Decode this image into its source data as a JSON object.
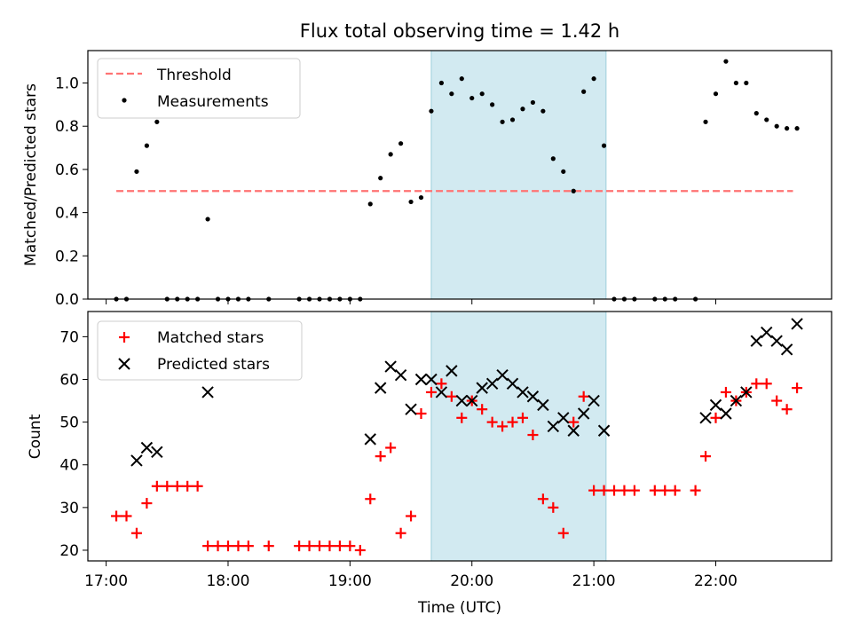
{
  "chart_data": [
    {
      "type": "scatter",
      "title": "Flux total observing time = 1.42 h",
      "xlabel": "",
      "ylabel": "Matched/Predicted stars",
      "ylim": [
        0,
        1.15
      ],
      "yticks": [
        0.0,
        0.2,
        0.4,
        0.6,
        0.8,
        1.0
      ],
      "ytick_labels": [
        "0.0",
        "0.2",
        "0.4",
        "0.6",
        "0.8",
        "1.0"
      ],
      "xlim": [
        "16:51",
        "22:57"
      ],
      "xticks": [
        "17:00",
        "18:00",
        "19:00",
        "20:00",
        "21:00",
        "22:00"
      ],
      "highlight_span": {
        "start": "19:40",
        "end": "21:06",
        "color": "#add8e6"
      },
      "legend_position": "upper-left",
      "series": [
        {
          "name": "Threshold",
          "kind": "dashed-line",
          "color": "#ff7373",
          "x": [
            "17:05",
            "22:38"
          ],
          "y": [
            0.5,
            0.5
          ]
        },
        {
          "name": "Measurements",
          "kind": "dot",
          "color": "#000000",
          "x": [
            "17:05",
            "17:10",
            "17:15",
            "17:20",
            "17:25",
            "17:30",
            "17:35",
            "17:40",
            "17:45",
            "17:50",
            "17:55",
            "18:00",
            "18:05",
            "18:10",
            "18:20",
            "18:35",
            "18:40",
            "18:45",
            "18:50",
            "18:55",
            "19:00",
            "19:05",
            "19:10",
            "19:15",
            "19:20",
            "19:25",
            "19:30",
            "19:35",
            "19:40",
            "19:45",
            "19:50",
            "19:55",
            "20:00",
            "20:05",
            "20:10",
            "20:15",
            "20:20",
            "20:25",
            "20:30",
            "20:35",
            "20:40",
            "20:45",
            "20:50",
            "20:55",
            "21:00",
            "21:05",
            "21:10",
            "21:15",
            "21:20",
            "21:30",
            "21:35",
            "21:40",
            "21:50",
            "21:55",
            "22:00",
            "22:05",
            "22:10",
            "22:15",
            "22:20",
            "22:25",
            "22:30",
            "22:35",
            "22:40"
          ],
          "y": [
            0.0,
            0.0,
            0.59,
            0.71,
            0.82,
            0.0,
            0.0,
            0.0,
            0.0,
            0.37,
            0.0,
            0.0,
            0.0,
            0.0,
            0.0,
            0.0,
            0.0,
            0.0,
            0.0,
            0.0,
            0.0,
            0.0,
            0.44,
            0.56,
            0.67,
            0.72,
            0.45,
            0.47,
            0.87,
            1.0,
            0.95,
            1.02,
            0.93,
            0.95,
            0.9,
            0.82,
            0.83,
            0.88,
            0.91,
            0.87,
            0.65,
            0.59,
            0.5,
            0.96,
            1.02,
            0.71,
            0.0,
            0.0,
            0.0,
            0.0,
            0.0,
            0.0,
            0.0,
            0.82,
            0.95,
            1.1,
            1.0,
            1.0,
            0.86,
            0.83,
            0.8,
            0.79,
            0.79
          ]
        }
      ]
    },
    {
      "type": "scatter",
      "title": "",
      "xlabel": "Time (UTC)",
      "ylabel": "Count",
      "ylim": [
        17.5,
        75.9
      ],
      "yticks": [
        20,
        30,
        40,
        50,
        60,
        70
      ],
      "ytick_labels": [
        "20",
        "30",
        "40",
        "50",
        "60",
        "70"
      ],
      "xlim": [
        "16:51",
        "22:57"
      ],
      "xticks": [
        "17:00",
        "18:00",
        "19:00",
        "20:00",
        "21:00",
        "22:00"
      ],
      "xtick_labels": [
        "17:00",
        "18:00",
        "19:00",
        "20:00",
        "21:00",
        "22:00"
      ],
      "highlight_span": {
        "start": "19:40",
        "end": "21:06",
        "color": "#add8e6"
      },
      "legend_position": "upper-left",
      "series": [
        {
          "name": "Matched stars",
          "kind": "plus",
          "color": "#ff0000",
          "x": [
            "17:05",
            "17:10",
            "17:15",
            "17:20",
            "17:25",
            "17:30",
            "17:35",
            "17:40",
            "17:45",
            "17:50",
            "17:55",
            "18:00",
            "18:05",
            "18:10",
            "18:20",
            "18:35",
            "18:40",
            "18:45",
            "18:50",
            "18:55",
            "19:00",
            "19:05",
            "19:10",
            "19:15",
            "19:20",
            "19:25",
            "19:30",
            "19:35",
            "19:40",
            "19:45",
            "19:50",
            "19:55",
            "20:00",
            "20:05",
            "20:10",
            "20:15",
            "20:20",
            "20:25",
            "20:30",
            "20:35",
            "20:40",
            "20:45",
            "20:50",
            "20:55",
            "21:00",
            "21:05",
            "21:10",
            "21:15",
            "21:20",
            "21:30",
            "21:35",
            "21:40",
            "21:50",
            "21:55",
            "22:00",
            "22:05",
            "22:10",
            "22:15",
            "22:20",
            "22:25",
            "22:30",
            "22:35",
            "22:40"
          ],
          "y": [
            28,
            28,
            24,
            31,
            35,
            35,
            35,
            35,
            35,
            21,
            21,
            21,
            21,
            21,
            21,
            21,
            21,
            21,
            21,
            21,
            21,
            20,
            32,
            42,
            44,
            24,
            28,
            52,
            57,
            59,
            56,
            51,
            55,
            53,
            50,
            49,
            50,
            51,
            47,
            32,
            30,
            24,
            50,
            56,
            34,
            34,
            34,
            34,
            34,
            34,
            34,
            34,
            34,
            42,
            51,
            57,
            55,
            57,
            59,
            59,
            55,
            53,
            58
          ]
        },
        {
          "name": "Predicted stars",
          "kind": "cross",
          "color": "#000000",
          "x": [
            "17:15",
            "17:20",
            "17:25",
            "17:50",
            "19:10",
            "19:15",
            "19:20",
            "19:25",
            "19:30",
            "19:35",
            "19:40",
            "19:45",
            "19:50",
            "19:55",
            "20:00",
            "20:05",
            "20:10",
            "20:15",
            "20:20",
            "20:25",
            "20:30",
            "20:35",
            "20:40",
            "20:45",
            "20:50",
            "20:55",
            "21:00",
            "21:05",
            "21:55",
            "22:00",
            "22:05",
            "22:10",
            "22:15",
            "22:20",
            "22:25",
            "22:30",
            "22:35",
            "22:40"
          ],
          "y": [
            41,
            44,
            43,
            57,
            46,
            58,
            63,
            61,
            53,
            60,
            60,
            57,
            62,
            55,
            55,
            58,
            59,
            61,
            59,
            57,
            56,
            54,
            49,
            51,
            48,
            52,
            55,
            48,
            51,
            54,
            52,
            55,
            57,
            69,
            71,
            69,
            67,
            73
          ]
        }
      ]
    }
  ]
}
